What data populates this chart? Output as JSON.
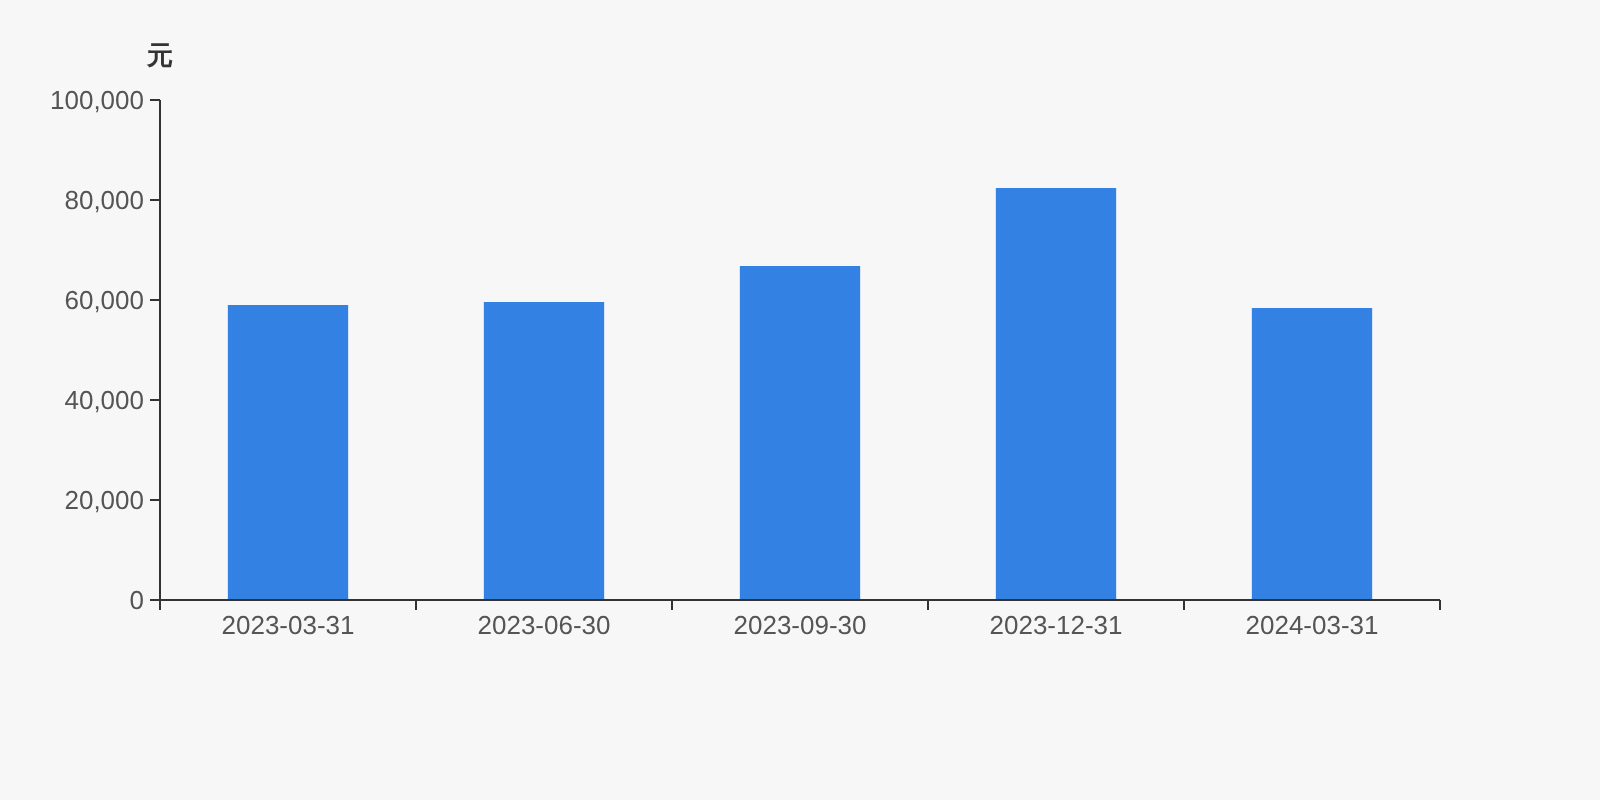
{
  "chart_data": {
    "type": "bar",
    "ylabel": "元",
    "categories": [
      "2023-03-31",
      "2023-06-30",
      "2023-09-30",
      "2023-12-31",
      "2024-03-31"
    ],
    "series": [
      {
        "color": "#3381e3",
        "values": [
          59000,
          59600,
          66800,
          82400,
          58400
        ]
      }
    ],
    "ylim": [
      0,
      100000
    ],
    "yticks": [
      {
        "value": 0,
        "label": "0"
      },
      {
        "value": 20000,
        "label": "20,000"
      },
      {
        "value": 40000,
        "label": "40,000"
      },
      {
        "value": 60000,
        "label": "60,000"
      },
      {
        "value": 80000,
        "label": "80,000"
      },
      {
        "value": 100000,
        "label": "100,000"
      }
    ]
  }
}
